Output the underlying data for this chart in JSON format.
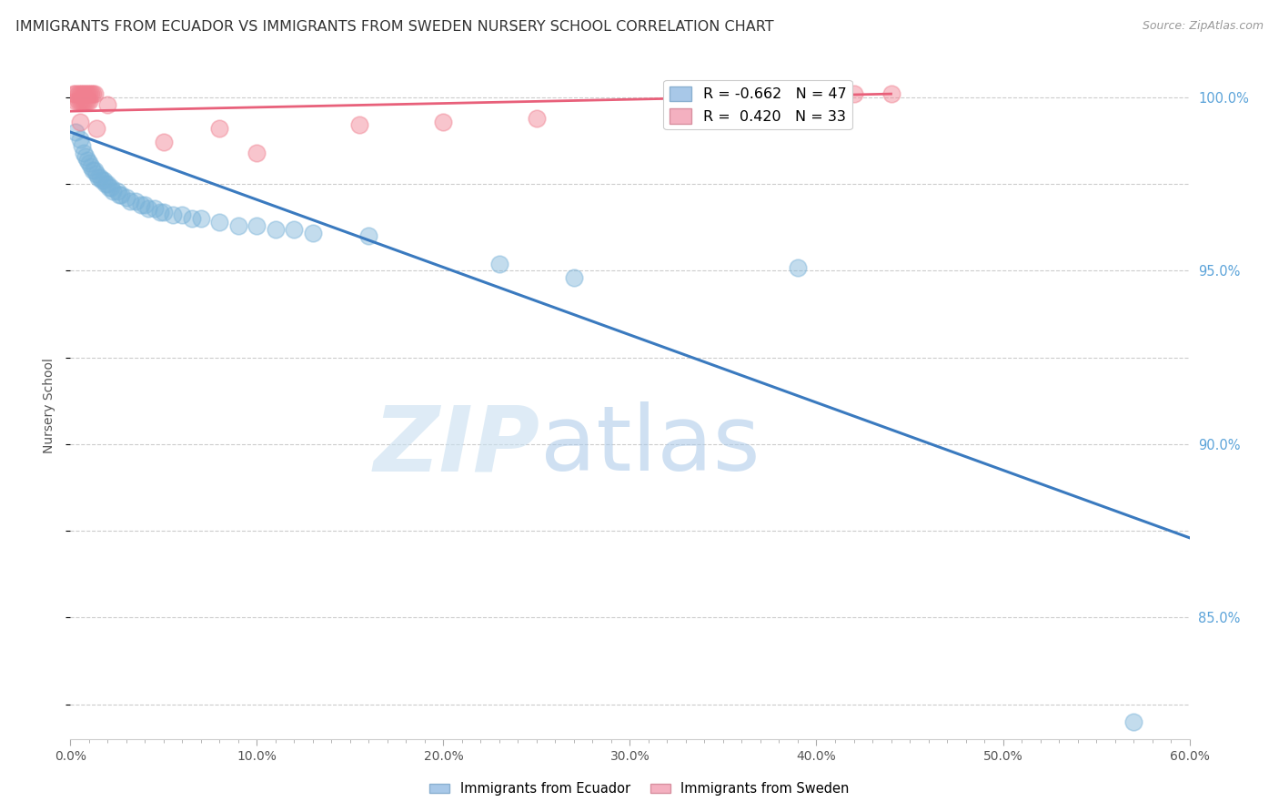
{
  "title": "IMMIGRANTS FROM ECUADOR VS IMMIGRANTS FROM SWEDEN NURSERY SCHOOL CORRELATION CHART",
  "source": "Source: ZipAtlas.com",
  "xlabel_ticks": [
    "0.0%",
    "",
    "",
    "",
    "",
    "",
    "",
    "",
    "",
    "10.0%",
    "",
    "",
    "",
    "",
    "",
    "",
    "",
    "",
    "",
    "20.0%",
    "",
    "",
    "",
    "",
    "",
    "",
    "",
    "",
    "",
    "30.0%",
    "",
    "",
    "",
    "",
    "",
    "",
    "",
    "",
    "",
    "40.0%",
    "",
    "",
    "",
    "",
    "",
    "",
    "",
    "",
    "",
    "50.0%",
    "",
    "",
    "",
    "",
    "",
    "",
    "",
    "",
    "",
    "60.0%"
  ],
  "xlabel_vals": [
    0.0,
    0.1,
    0.2,
    0.3,
    0.4,
    0.5,
    0.6
  ],
  "xlim": [
    0.0,
    0.6
  ],
  "ylim": [
    0.815,
    1.007
  ],
  "right_ytick_labels": [
    "85.0%",
    "90.0%",
    "95.0%",
    "100.0%"
  ],
  "right_ytick_vals": [
    0.85,
    0.9,
    0.95,
    1.0
  ],
  "ylabel": "Nursery School",
  "legend_blue_label": "R = -0.662   N = 47",
  "legend_pink_label": "R =  0.420   N = 33",
  "ecuador_color": "#7ab3d9",
  "sweden_color": "#f08090",
  "ecuador_line_color": "#3a7abf",
  "sweden_line_color": "#e8607a",
  "ecuador_scatter": [
    [
      0.003,
      0.99
    ],
    [
      0.005,
      0.988
    ],
    [
      0.006,
      0.986
    ],
    [
      0.007,
      0.984
    ],
    [
      0.008,
      0.983
    ],
    [
      0.009,
      0.982
    ],
    [
      0.01,
      0.981
    ],
    [
      0.011,
      0.98
    ],
    [
      0.012,
      0.979
    ],
    [
      0.013,
      0.979
    ],
    [
      0.014,
      0.978
    ],
    [
      0.015,
      0.977
    ],
    [
      0.016,
      0.977
    ],
    [
      0.017,
      0.976
    ],
    [
      0.018,
      0.976
    ],
    [
      0.019,
      0.975
    ],
    [
      0.02,
      0.975
    ],
    [
      0.021,
      0.974
    ],
    [
      0.022,
      0.974
    ],
    [
      0.023,
      0.973
    ],
    [
      0.025,
      0.973
    ],
    [
      0.026,
      0.972
    ],
    [
      0.027,
      0.972
    ],
    [
      0.03,
      0.971
    ],
    [
      0.032,
      0.97
    ],
    [
      0.035,
      0.97
    ],
    [
      0.038,
      0.969
    ],
    [
      0.04,
      0.969
    ],
    [
      0.042,
      0.968
    ],
    [
      0.045,
      0.968
    ],
    [
      0.048,
      0.967
    ],
    [
      0.05,
      0.967
    ],
    [
      0.055,
      0.966
    ],
    [
      0.06,
      0.966
    ],
    [
      0.065,
      0.965
    ],
    [
      0.07,
      0.965
    ],
    [
      0.08,
      0.964
    ],
    [
      0.09,
      0.963
    ],
    [
      0.1,
      0.963
    ],
    [
      0.11,
      0.962
    ],
    [
      0.12,
      0.962
    ],
    [
      0.13,
      0.961
    ],
    [
      0.16,
      0.96
    ],
    [
      0.23,
      0.952
    ],
    [
      0.27,
      0.948
    ],
    [
      0.39,
      0.951
    ],
    [
      0.57,
      0.82
    ]
  ],
  "sweden_scatter": [
    [
      0.002,
      1.001
    ],
    [
      0.003,
      1.001
    ],
    [
      0.004,
      1.001
    ],
    [
      0.005,
      1.001
    ],
    [
      0.006,
      1.001
    ],
    [
      0.007,
      1.001
    ],
    [
      0.008,
      1.001
    ],
    [
      0.009,
      1.001
    ],
    [
      0.01,
      1.001
    ],
    [
      0.011,
      1.001
    ],
    [
      0.012,
      1.001
    ],
    [
      0.013,
      1.001
    ],
    [
      0.003,
      0.999
    ],
    [
      0.004,
      0.999
    ],
    [
      0.005,
      0.999
    ],
    [
      0.006,
      0.999
    ],
    [
      0.007,
      0.999
    ],
    [
      0.008,
      0.999
    ],
    [
      0.009,
      0.999
    ],
    [
      0.01,
      0.999
    ],
    [
      0.02,
      0.998
    ],
    [
      0.08,
      0.991
    ],
    [
      0.155,
      0.992
    ],
    [
      0.2,
      0.993
    ],
    [
      0.25,
      0.994
    ],
    [
      0.38,
      0.995
    ],
    [
      0.4,
      0.999
    ],
    [
      0.42,
      1.001
    ],
    [
      0.44,
      1.001
    ],
    [
      0.05,
      0.987
    ],
    [
      0.1,
      0.984
    ],
    [
      0.005,
      0.993
    ],
    [
      0.014,
      0.991
    ]
  ],
  "ecuador_line": [
    [
      0.0,
      0.99
    ],
    [
      0.6,
      0.873
    ]
  ],
  "sweden_line": [
    [
      0.0,
      0.996
    ],
    [
      0.44,
      1.001
    ]
  ],
  "watermark_zip": "ZIP",
  "watermark_atlas": "atlas",
  "background_color": "#ffffff",
  "grid_color": "#cccccc",
  "title_fontsize": 11.5,
  "axis_tick_fontsize": 10,
  "right_tick_color": "#5ba3d9"
}
